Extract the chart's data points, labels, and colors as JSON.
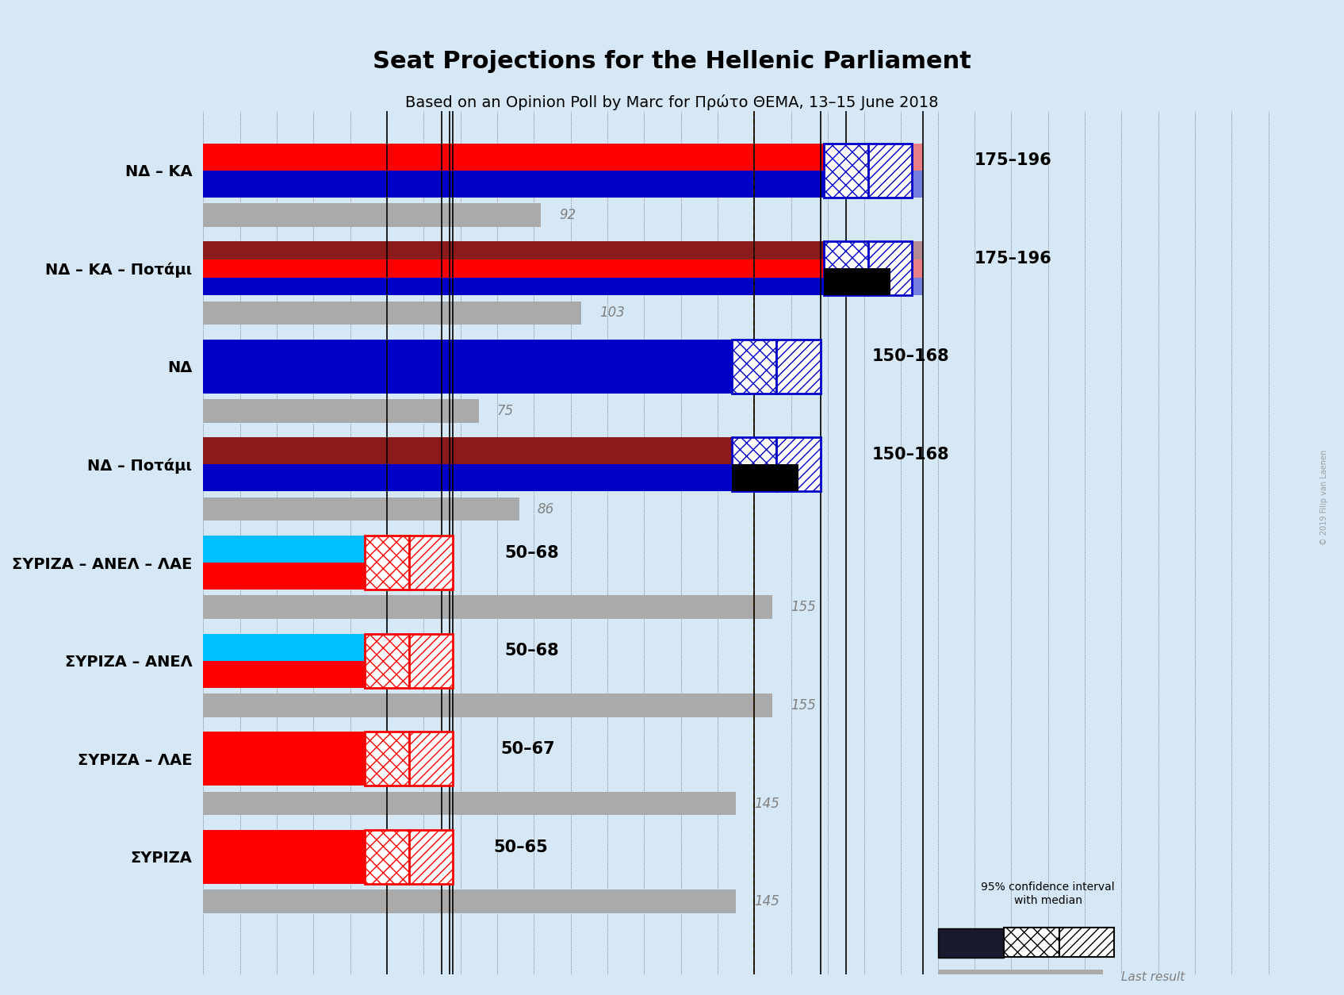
{
  "title": "Seat Projections for the Hellenic Parliament",
  "subtitle": "Based on an Opinion Poll by Marc for Πρώτο ΘΕΜΑ, 13–15 June 2018",
  "copyright": "© 2019 Filip van Laenen",
  "background_color": "#d6e8f5",
  "xlim": [
    0,
    300
  ],
  "majority_line": 150,
  "coalitions": [
    {
      "label": "ΝΔ – ΚΑ",
      "ci_low": 175,
      "ci_high": 196,
      "median": 185,
      "last_result": 92,
      "ci_label": "175–196",
      "last_label": "92",
      "colors": [
        "#0000c8",
        "#ff0000"
      ],
      "underline": false
    },
    {
      "label": "ΝΔ – ΚΑ – Ποτάμι",
      "ci_low": 175,
      "ci_high": 196,
      "median": 185,
      "last_result": 103,
      "ci_label": "175–196",
      "last_label": "103",
      "colors": [
        "#0000c8",
        "#ff0000",
        "#8b1a1a"
      ],
      "underline": false
    },
    {
      "label": "ΝΔ",
      "ci_low": 150,
      "ci_high": 168,
      "median": 159,
      "last_result": 75,
      "ci_label": "150–168",
      "last_label": "75",
      "colors": [
        "#0000c8"
      ],
      "underline": false
    },
    {
      "label": "ΝΔ – Ποτάμι",
      "ci_low": 150,
      "ci_high": 168,
      "median": 159,
      "last_result": 86,
      "ci_label": "150–168",
      "last_label": "86",
      "colors": [
        "#0000c8",
        "#8b1a1a"
      ],
      "underline": false
    },
    {
      "label": "ΣΥΡΙΖΑ – ΑΝΕΛ – ΛΑΕ",
      "ci_low": 50,
      "ci_high": 68,
      "median": 59,
      "last_result": 155,
      "ci_label": "50–68",
      "last_label": "155",
      "colors": [
        "#ff0000",
        "#00bfff"
      ],
      "underline": false
    },
    {
      "label": "ΣΥΡΙΖΑ – ΑΝΕΛ",
      "ci_low": 50,
      "ci_high": 68,
      "median": 59,
      "last_result": 155,
      "ci_label": "50–68",
      "last_label": "155",
      "colors": [
        "#ff0000",
        "#00bfff"
      ],
      "underline": false
    },
    {
      "label": "ΣΥΡΙΖΑ – ΛΑΕ",
      "ci_low": 50,
      "ci_high": 67,
      "median": 58,
      "last_result": 145,
      "ci_label": "50–67",
      "last_label": "145",
      "colors": [
        "#ff0000"
      ],
      "underline": false
    },
    {
      "label": "ΣΥΡΙΖΑ",
      "ci_low": 50,
      "ci_high": 65,
      "median": 57,
      "last_result": 145,
      "ci_label": "50–65",
      "last_label": "145",
      "colors": [
        "#ff0000"
      ],
      "underline": true
    }
  ]
}
